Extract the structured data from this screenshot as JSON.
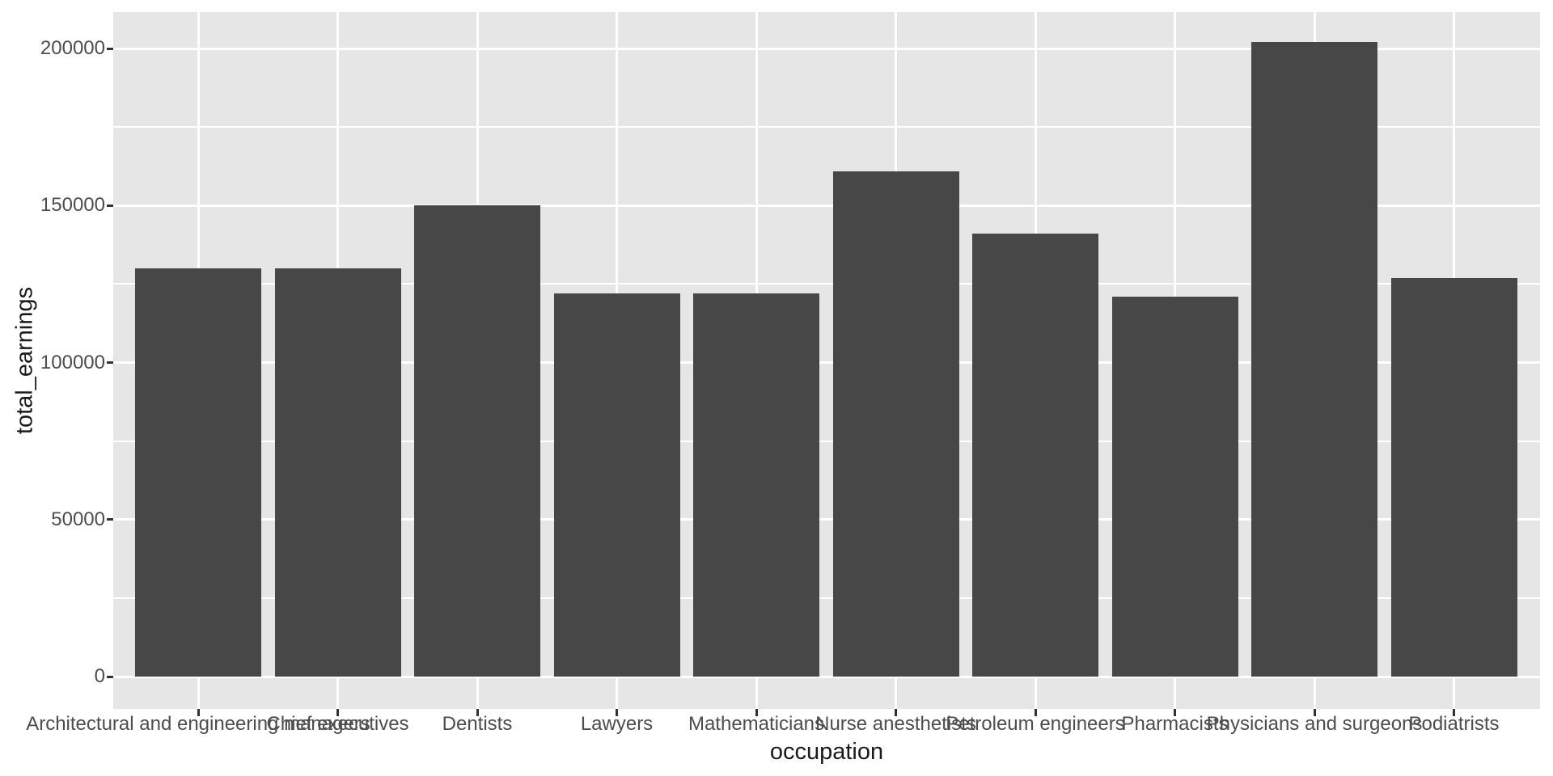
{
  "chart_data": {
    "type": "bar",
    "title": "",
    "xlabel": "occupation",
    "ylabel": "total_earnings",
    "categories": [
      "Architectural and engineering managers",
      "Chief executives",
      "Dentists",
      "Lawyers",
      "Mathematicians",
      "Nurse anesthetists",
      "Petroleum engineers",
      "Pharmacists",
      "Physicians and surgeons",
      "Podiatrists"
    ],
    "values": [
      130000,
      130000,
      150000,
      122000,
      122000,
      161000,
      141000,
      121000,
      202000,
      127000
    ],
    "yticks": [
      0,
      50000,
      100000,
      150000,
      200000
    ],
    "ytick_labels": [
      "0",
      "50000",
      "100000",
      "150000",
      "200000"
    ],
    "minor_yticks": [
      25000,
      75000,
      125000,
      175000
    ],
    "ylim": [
      -10100,
      212100
    ],
    "grid": "major and minor horizontal, major vertical, white on gray panel",
    "legend": "none",
    "colors": {
      "bar": "#474747",
      "panel_background": "#E6E6E6",
      "gridline": "#FFFFFF",
      "axis_text": "#4D4D4D",
      "axis_title": "#1A1A1A",
      "tick_mark": "#333333",
      "page_background": "#FFFFFF"
    }
  }
}
